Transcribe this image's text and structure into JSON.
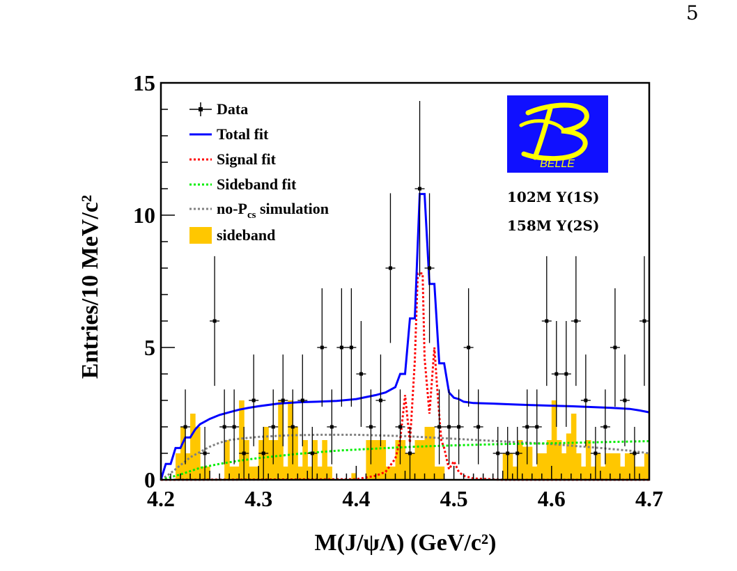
{
  "page_number": "5",
  "colors": {
    "data": "#000000",
    "total_fit": "#0000ff",
    "signal_fit": "#ff0000",
    "sideband_fit": "#00ee00",
    "no_pcs": "#808080",
    "sideband_fill": "#ffc700",
    "logo_bg": "#1010ff",
    "logo_fg": "#ffff00"
  },
  "logo": {
    "text": "BELLE"
  },
  "annotations": {
    "lumi_1": "102M Υ(1S)",
    "lumi_2": "158M Υ(2S)"
  },
  "chart_data": {
    "type": "histogram",
    "title": "",
    "xlabel": "M(J/ψΛ) (GeV/c²)",
    "ylabel": "Entries/10 MeV/c²",
    "xlim": [
      4.2,
      4.7
    ],
    "ylim": [
      0,
      15
    ],
    "x_ticks": [
      "4.2",
      "4.3",
      "4.4",
      "4.5",
      "4.6",
      "4.7"
    ],
    "y_ticks": [
      "0",
      "5",
      "10",
      "15"
    ],
    "legend": [
      {
        "key": "data",
        "label": "Data",
        "style": "marker"
      },
      {
        "key": "total_fit",
        "label": "Total fit",
        "style": "solid"
      },
      {
        "key": "signal_fit",
        "label": "Signal fit",
        "style": "dotted"
      },
      {
        "key": "sideband_fit",
        "label": "Sideband fit",
        "style": "dotted"
      },
      {
        "key": "no_pcs",
        "label": "no-P",
        "label_sub": "cs",
        "label_rest": " simulation",
        "style": "dotted"
      },
      {
        "key": "sideband_fill",
        "label": "sideband",
        "style": "box"
      }
    ],
    "bin_width": 0.01,
    "data_points": [
      {
        "x": 4.225,
        "y": 2
      },
      {
        "x": 4.245,
        "y": 1
      },
      {
        "x": 4.255,
        "y": 6
      },
      {
        "x": 4.265,
        "y": 2
      },
      {
        "x": 4.275,
        "y": 2
      },
      {
        "x": 4.285,
        "y": 1
      },
      {
        "x": 4.295,
        "y": 3
      },
      {
        "x": 4.305,
        "y": 1
      },
      {
        "x": 4.315,
        "y": 2
      },
      {
        "x": 4.325,
        "y": 3
      },
      {
        "x": 4.335,
        "y": 2
      },
      {
        "x": 4.345,
        "y": 3
      },
      {
        "x": 4.355,
        "y": 1
      },
      {
        "x": 4.365,
        "y": 5
      },
      {
        "x": 4.375,
        "y": 2
      },
      {
        "x": 4.385,
        "y": 5
      },
      {
        "x": 4.395,
        "y": 5
      },
      {
        "x": 4.405,
        "y": 4
      },
      {
        "x": 4.415,
        "y": 2
      },
      {
        "x": 4.425,
        "y": 3
      },
      {
        "x": 4.435,
        "y": 8
      },
      {
        "x": 4.445,
        "y": 2
      },
      {
        "x": 4.455,
        "y": 1
      },
      {
        "x": 4.465,
        "y": 11
      },
      {
        "x": 4.475,
        "y": 8
      },
      {
        "x": 4.485,
        "y": 2
      },
      {
        "x": 4.495,
        "y": 2
      },
      {
        "x": 4.505,
        "y": 2
      },
      {
        "x": 4.515,
        "y": 5
      },
      {
        "x": 4.525,
        "y": 2
      },
      {
        "x": 4.545,
        "y": 1
      },
      {
        "x": 4.555,
        "y": 1
      },
      {
        "x": 4.565,
        "y": 1
      },
      {
        "x": 4.575,
        "y": 2
      },
      {
        "x": 4.585,
        "y": 2
      },
      {
        "x": 4.595,
        "y": 6
      },
      {
        "x": 4.605,
        "y": 4
      },
      {
        "x": 4.615,
        "y": 4
      },
      {
        "x": 4.625,
        "y": 6
      },
      {
        "x": 4.635,
        "y": 3
      },
      {
        "x": 4.645,
        "y": 1
      },
      {
        "x": 4.655,
        "y": 2
      },
      {
        "x": 4.665,
        "y": 5
      },
      {
        "x": 4.675,
        "y": 3
      },
      {
        "x": 4.685,
        "y": 1
      },
      {
        "x": 4.695,
        "y": 6
      }
    ],
    "sideband_hist": [
      0,
      0,
      0,
      1,
      2,
      1,
      2.5,
      2,
      0.5,
      0.5,
      0,
      0,
      0,
      1.5,
      0.5,
      0.5,
      3,
      1.5,
      0.5,
      0.5,
      1.5,
      2,
      1.5,
      1.5,
      3,
      0.5,
      3,
      2,
      0.5,
      1.5,
      0.5,
      1.5,
      0.5,
      1.5,
      0.5,
      0,
      0,
      0,
      0,
      0.25,
      0,
      0,
      1.5,
      1.5,
      1.5,
      1.5,
      0.5,
      0.5,
      1.5,
      1.5,
      1,
      1,
      1.5,
      1.5,
      2,
      2,
      0.5,
      0.5,
      0,
      0,
      0,
      0,
      0,
      0,
      0,
      0,
      0,
      0,
      0,
      0,
      1,
      1,
      0.5,
      1.5,
      1.25,
      1.25,
      0.5,
      1,
      1,
      1.5,
      3,
      1.5,
      1,
      1.75,
      2.5,
      1,
      0.5,
      1.5,
      0.5,
      1,
      0.5,
      1,
      1,
      1,
      0.5,
      1,
      1,
      0.5,
      0.5,
      1
    ],
    "total_fit": [
      {
        "x": 4.2,
        "y": 0
      },
      {
        "x": 4.205,
        "y": 0.6
      },
      {
        "x": 4.21,
        "y": 0.6
      },
      {
        "x": 4.215,
        "y": 1.2
      },
      {
        "x": 4.22,
        "y": 1.2
      },
      {
        "x": 4.225,
        "y": 1.6
      },
      {
        "x": 4.23,
        "y": 1.6
      },
      {
        "x": 4.235,
        "y": 1.9
      },
      {
        "x": 4.24,
        "y": 2.1
      },
      {
        "x": 4.245,
        "y": 2.2
      },
      {
        "x": 4.25,
        "y": 2.3
      },
      {
        "x": 4.26,
        "y": 2.45
      },
      {
        "x": 4.27,
        "y": 2.55
      },
      {
        "x": 4.28,
        "y": 2.65
      },
      {
        "x": 4.29,
        "y": 2.72
      },
      {
        "x": 4.3,
        "y": 2.78
      },
      {
        "x": 4.32,
        "y": 2.88
      },
      {
        "x": 4.34,
        "y": 2.93
      },
      {
        "x": 4.36,
        "y": 2.95
      },
      {
        "x": 4.38,
        "y": 2.98
      },
      {
        "x": 4.4,
        "y": 3.05
      },
      {
        "x": 4.42,
        "y": 3.2
      },
      {
        "x": 4.43,
        "y": 3.3
      },
      {
        "x": 4.44,
        "y": 3.5
      },
      {
        "x": 4.445,
        "y": 4.0
      },
      {
        "x": 4.45,
        "y": 4.0
      },
      {
        "x": 4.455,
        "y": 6.1
      },
      {
        "x": 4.46,
        "y": 6.1
      },
      {
        "x": 4.465,
        "y": 10.8
      },
      {
        "x": 4.47,
        "y": 10.8
      },
      {
        "x": 4.475,
        "y": 7.4
      },
      {
        "x": 4.48,
        "y": 7.4
      },
      {
        "x": 4.485,
        "y": 4.4
      },
      {
        "x": 4.49,
        "y": 4.4
      },
      {
        "x": 4.495,
        "y": 3.3
      },
      {
        "x": 4.5,
        "y": 3.1
      },
      {
        "x": 4.505,
        "y": 3.05
      },
      {
        "x": 4.51,
        "y": 2.95
      },
      {
        "x": 4.52,
        "y": 2.9
      },
      {
        "x": 4.54,
        "y": 2.88
      },
      {
        "x": 4.56,
        "y": 2.85
      },
      {
        "x": 4.58,
        "y": 2.82
      },
      {
        "x": 4.6,
        "y": 2.8
      },
      {
        "x": 4.62,
        "y": 2.78
      },
      {
        "x": 4.64,
        "y": 2.75
      },
      {
        "x": 4.66,
        "y": 2.72
      },
      {
        "x": 4.68,
        "y": 2.68
      },
      {
        "x": 4.69,
        "y": 2.62
      },
      {
        "x": 4.7,
        "y": 2.55
      }
    ],
    "signal_fit": [
      {
        "x": 4.2,
        "y": 0
      },
      {
        "x": 4.4,
        "y": 0.02
      },
      {
        "x": 4.42,
        "y": 0.15
      },
      {
        "x": 4.43,
        "y": 0.3
      },
      {
        "x": 4.44,
        "y": 0.8
      },
      {
        "x": 4.445,
        "y": 1.5
      },
      {
        "x": 4.45,
        "y": 3.2
      },
      {
        "x": 4.455,
        "y": 1.4
      },
      {
        "x": 4.46,
        "y": 4.5
      },
      {
        "x": 4.463,
        "y": 7.8
      },
      {
        "x": 4.468,
        "y": 7.8
      },
      {
        "x": 4.47,
        "y": 4.6
      },
      {
        "x": 4.475,
        "y": 2.5
      },
      {
        "x": 4.48,
        "y": 5.0
      },
      {
        "x": 4.483,
        "y": 3.4
      },
      {
        "x": 4.487,
        "y": 1.5
      },
      {
        "x": 4.49,
        "y": 1.2
      },
      {
        "x": 4.495,
        "y": 0.4
      },
      {
        "x": 4.5,
        "y": 0.7
      },
      {
        "x": 4.505,
        "y": 0.3
      },
      {
        "x": 4.51,
        "y": 0.15
      },
      {
        "x": 4.52,
        "y": 0.05
      },
      {
        "x": 4.55,
        "y": 0
      },
      {
        "x": 4.7,
        "y": 0
      }
    ],
    "sideband_fit": [
      {
        "x": 4.2,
        "y": 0
      },
      {
        "x": 4.22,
        "y": 0.2
      },
      {
        "x": 4.24,
        "y": 0.45
      },
      {
        "x": 4.26,
        "y": 0.6
      },
      {
        "x": 4.28,
        "y": 0.72
      },
      {
        "x": 4.3,
        "y": 0.82
      },
      {
        "x": 4.34,
        "y": 0.98
      },
      {
        "x": 4.38,
        "y": 1.1
      },
      {
        "x": 4.42,
        "y": 1.18
      },
      {
        "x": 4.46,
        "y": 1.25
      },
      {
        "x": 4.5,
        "y": 1.3
      },
      {
        "x": 4.55,
        "y": 1.35
      },
      {
        "x": 4.6,
        "y": 1.38
      },
      {
        "x": 4.65,
        "y": 1.42
      },
      {
        "x": 4.7,
        "y": 1.46
      }
    ],
    "no_pcs_sim": [
      {
        "x": 4.2,
        "y": 0
      },
      {
        "x": 4.21,
        "y": 0.25
      },
      {
        "x": 4.22,
        "y": 0.55
      },
      {
        "x": 4.23,
        "y": 0.85
      },
      {
        "x": 4.24,
        "y": 1.05
      },
      {
        "x": 4.25,
        "y": 1.25
      },
      {
        "x": 4.26,
        "y": 1.4
      },
      {
        "x": 4.27,
        "y": 1.5
      },
      {
        "x": 4.28,
        "y": 1.55
      },
      {
        "x": 4.3,
        "y": 1.62
      },
      {
        "x": 4.33,
        "y": 1.68
      },
      {
        "x": 4.36,
        "y": 1.7
      },
      {
        "x": 4.4,
        "y": 1.7
      },
      {
        "x": 4.45,
        "y": 1.65
      },
      {
        "x": 4.5,
        "y": 1.55
      },
      {
        "x": 4.55,
        "y": 1.45
      },
      {
        "x": 4.6,
        "y": 1.35
      },
      {
        "x": 4.65,
        "y": 1.2
      },
      {
        "x": 4.68,
        "y": 1.1
      },
      {
        "x": 4.7,
        "y": 1.0
      }
    ]
  }
}
